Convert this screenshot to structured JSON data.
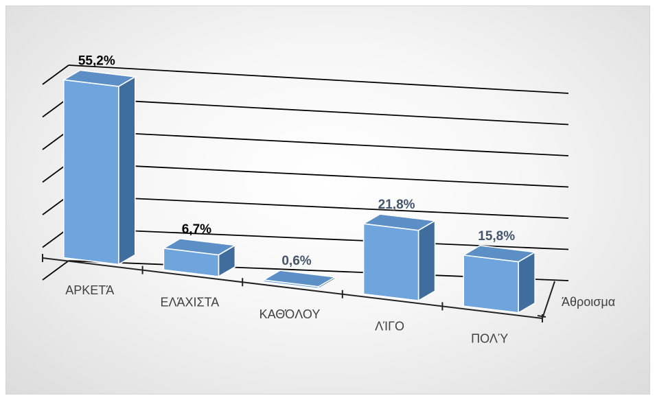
{
  "chart_data": {
    "type": "bar",
    "style": "3d-column",
    "categories": [
      "ΑΡΚΕΤΆ",
      "ΕΛΆΧΙΣΤΑ",
      "ΚΑΘΌΛΟΥ",
      "ΛΊΓΟ",
      "ΠΟΛΎ"
    ],
    "series": [
      {
        "name": "Άθροισμα",
        "values": [
          55.2,
          6.7,
          0.6,
          21.8,
          15.8
        ]
      }
    ],
    "data_labels": [
      "55,2%",
      "6,7%",
      "0,6%",
      "21,8%",
      "15,8%"
    ],
    "depth_axis_label": "Άθροισμα",
    "ylim": [
      0,
      60
    ],
    "grid": true,
    "bar_color": "#6fa5dc",
    "label_colors": [
      "#000000",
      "#000000",
      "#44546a",
      "#44546a",
      "#44546a"
    ]
  }
}
